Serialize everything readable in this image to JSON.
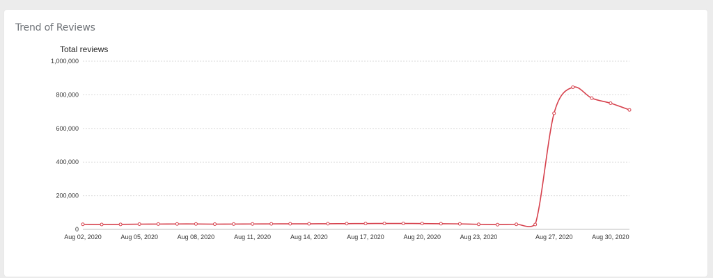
{
  "card": {
    "title": "Trend of Reviews"
  },
  "chart_data": {
    "type": "line",
    "ylabel": "Total reviews",
    "ylim": [
      0,
      1000000
    ],
    "yticks": [
      0,
      200000,
      400000,
      600000,
      800000,
      1000000
    ],
    "ytick_labels": [
      "0",
      "200,000",
      "400,000",
      "600,000",
      "800,000",
      "1,000,000"
    ],
    "xtick_labels": [
      "Aug 02, 2020",
      "Aug 05, 2020",
      "Aug 08, 2020",
      "Aug 11, 2020",
      "Aug 14, 2020",
      "Aug 17, 2020",
      "Aug 20, 2020",
      "Aug 23, 2020",
      "Aug 27, 2020",
      "Aug 30, 2020"
    ],
    "x": [
      "Aug 02, 2020",
      "Aug 03, 2020",
      "Aug 04, 2020",
      "Aug 05, 2020",
      "Aug 06, 2020",
      "Aug 07, 2020",
      "Aug 08, 2020",
      "Aug 09, 2020",
      "Aug 10, 2020",
      "Aug 11, 2020",
      "Aug 12, 2020",
      "Aug 13, 2020",
      "Aug 14, 2020",
      "Aug 15, 2020",
      "Aug 16, 2020",
      "Aug 17, 2020",
      "Aug 18, 2020",
      "Aug 19, 2020",
      "Aug 20, 2020",
      "Aug 21, 2020",
      "Aug 22, 2020",
      "Aug 23, 2020",
      "Aug 24, 2020",
      "Aug 25, 2020",
      "Aug 26, 2020",
      "Aug 27, 2020",
      "Aug 28, 2020",
      "Aug 29, 2020",
      "Aug 30, 2020",
      "Aug 31, 2020"
    ],
    "series": [
      {
        "name": "",
        "values": [
          30000,
          29000,
          29500,
          31000,
          31500,
          32000,
          32000,
          31000,
          31500,
          32000,
          32500,
          33000,
          33000,
          33500,
          34000,
          34500,
          35000,
          35000,
          34500,
          33500,
          32500,
          30000,
          28000,
          30000,
          29000,
          690000,
          845000,
          780000,
          750000,
          710000
        ]
      }
    ],
    "grid": true,
    "legend": "none",
    "colors": {
      "line": "#d6404c",
      "grid": "#d9d9d9",
      "axis": "#bdbdbd"
    }
  }
}
